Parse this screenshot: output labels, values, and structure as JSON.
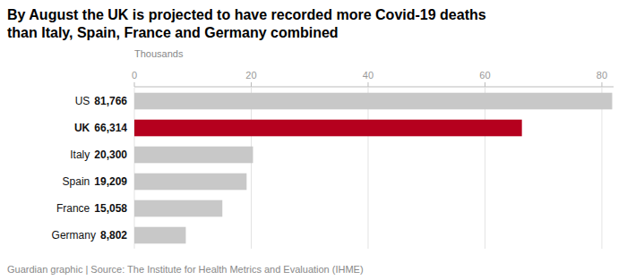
{
  "chart_data": {
    "type": "bar",
    "orientation": "horizontal",
    "title": "By August the UK is projected to have recorded more Covid-19 deaths\nthan Italy, Spain, France and Germany combined",
    "x_label": "Thousands",
    "annotations": [
      "Guardian graphic | Source: The Institute for Health Metrics and Evaluation (IHME)"
    ],
    "categories": [
      "US",
      "UK",
      "Italy",
      "Spain",
      "France",
      "Germany"
    ],
    "values": [
      81.766,
      66.314,
      20.3,
      19.209,
      15.058,
      8.802
    ],
    "value_labels": [
      "81,766",
      "66,314",
      "20,300",
      "19,209",
      "15,058",
      "8,802"
    ],
    "data_labels": true,
    "colors": [
      "#c8c8c8",
      "#b5001e",
      "#c8c8c8",
      "#c8c8c8",
      "#c8c8c8",
      "#c8c8c8"
    ],
    "xlim": [
      0,
      82
    ],
    "xticks": [
      0,
      20,
      40,
      60,
      80
    ],
    "grid": true
  }
}
